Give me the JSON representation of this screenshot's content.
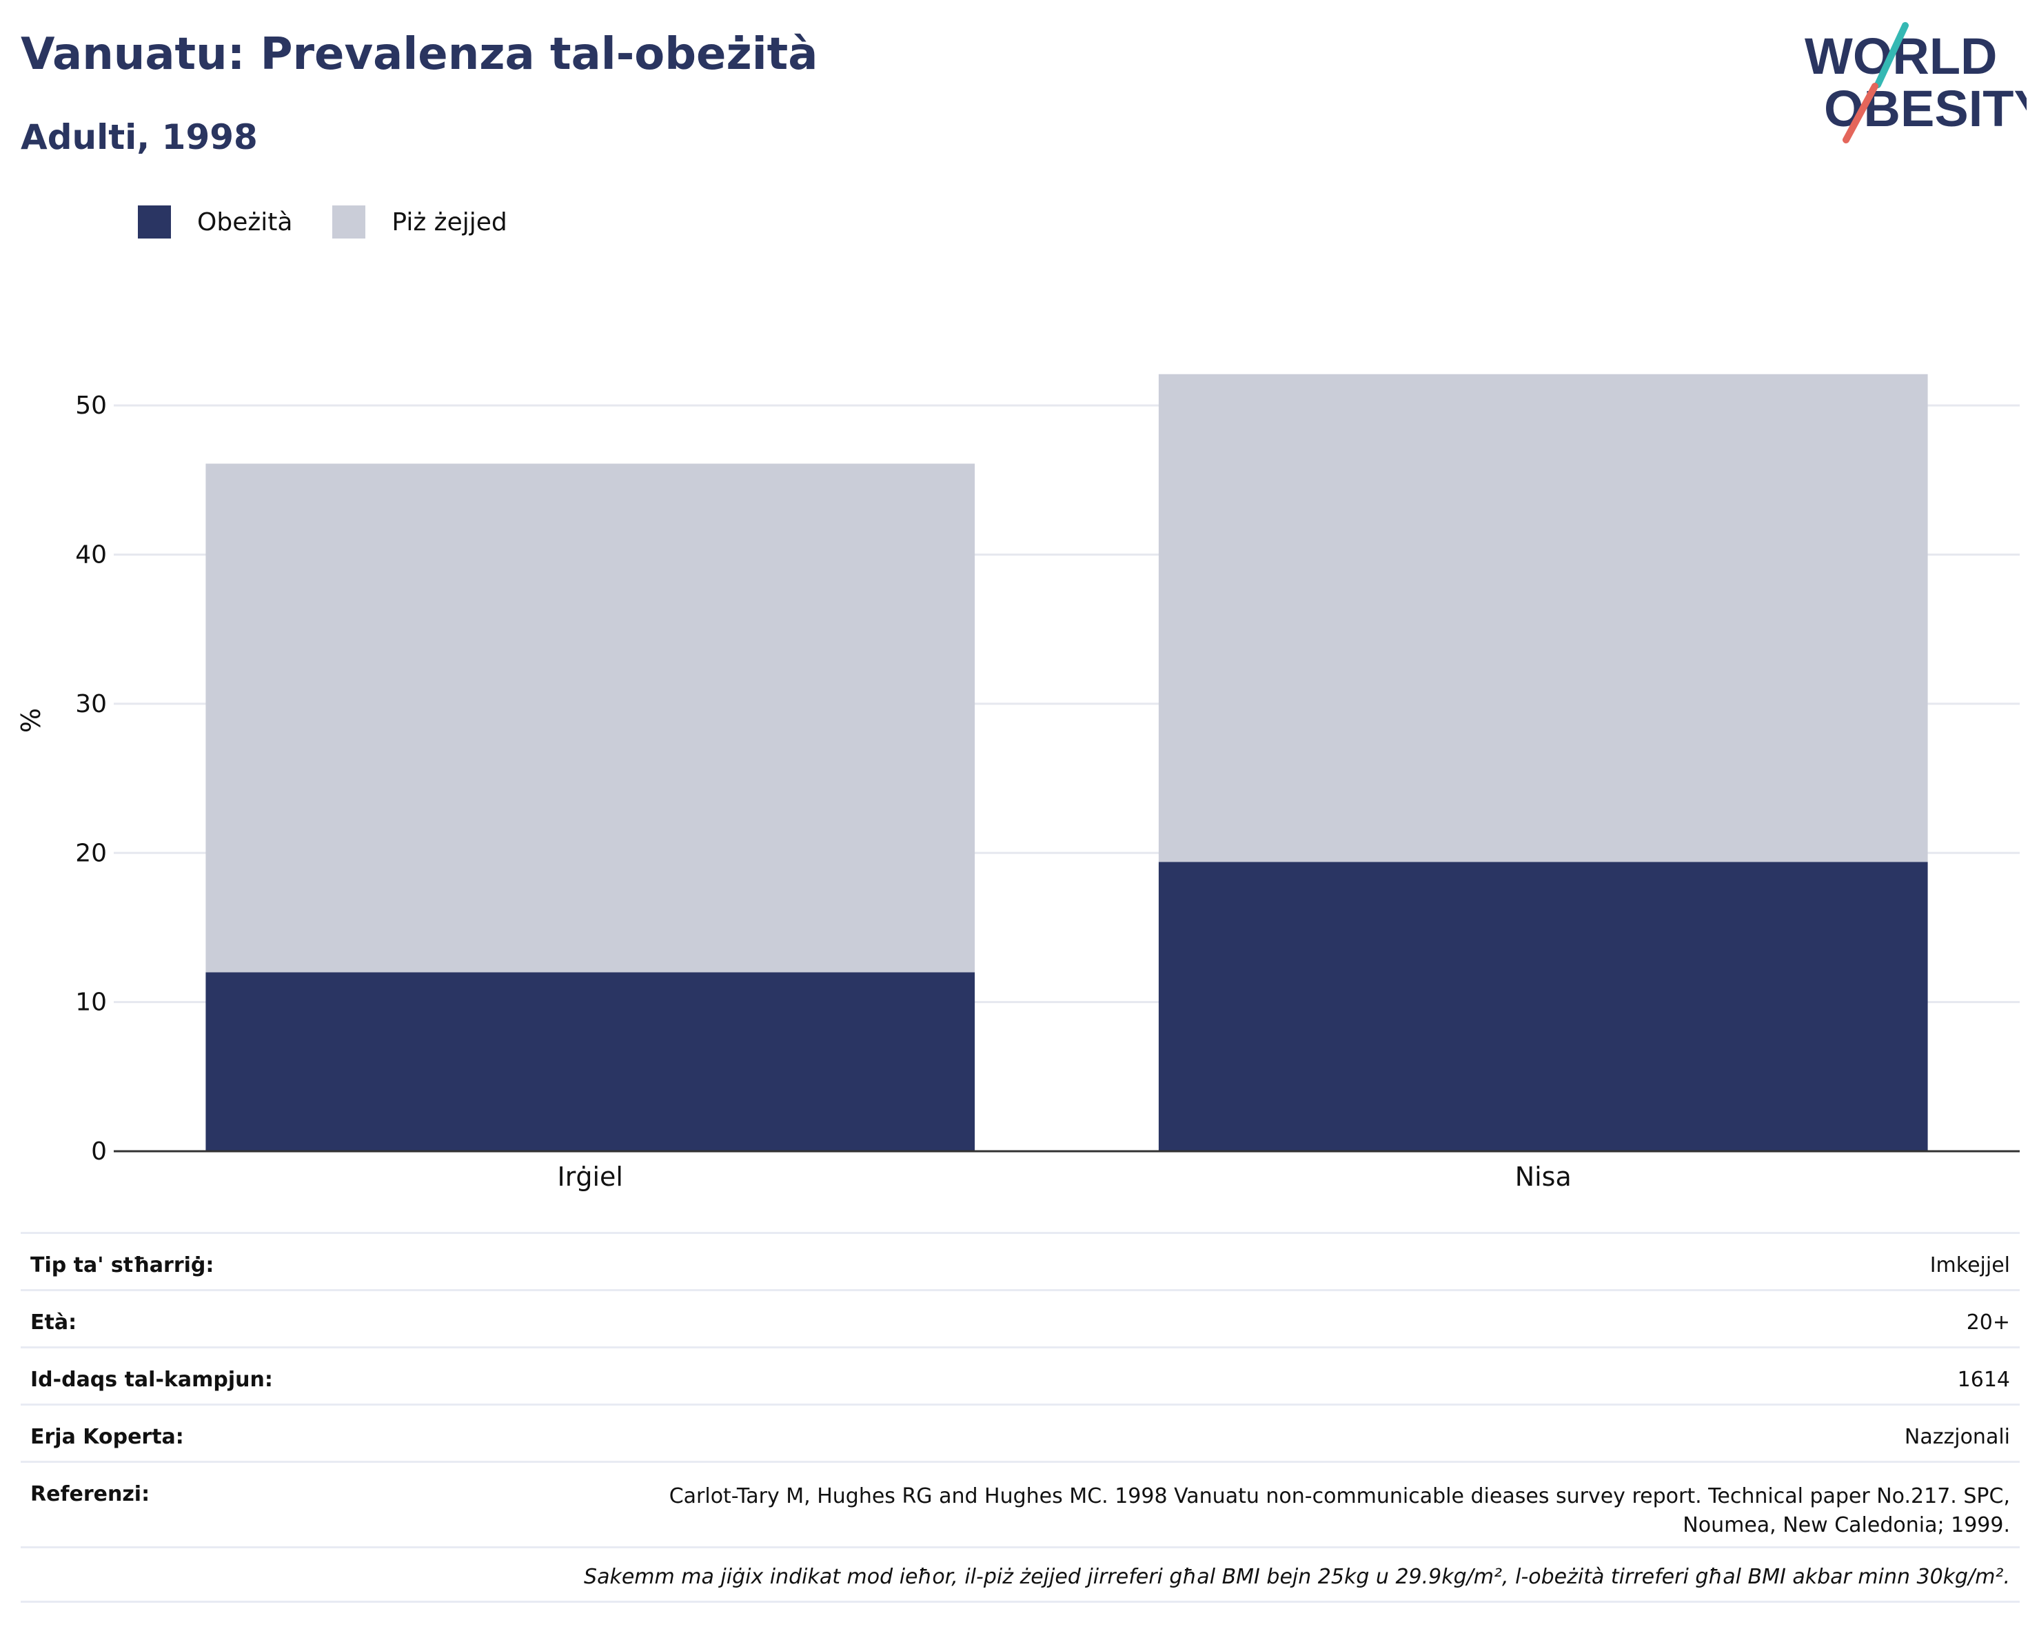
{
  "header": {
    "title": "Vanuatu: Prevalenza tal-obeżità",
    "subtitle": "Adulti, 1998"
  },
  "logo": {
    "line1": "WORLD",
    "line2": "OBESITY"
  },
  "legend": {
    "items": [
      {
        "label": "Obeżità",
        "color": "#2a3563"
      },
      {
        "label": "Piż żejjed",
        "color": "#cacdd8"
      }
    ]
  },
  "chart_data": {
    "type": "bar",
    "stacked": true,
    "categories": [
      "Irġiel",
      "Nisa"
    ],
    "series": [
      {
        "name": "Obeżità",
        "color": "#2a3563",
        "values": [
          12.0,
          19.4
        ]
      },
      {
        "name": "Piż żejjed",
        "color": "#cacdd8",
        "values": [
          34.1,
          32.7
        ]
      }
    ],
    "ylabel": "%",
    "xlabel": "",
    "ylim": [
      0,
      55
    ],
    "yticks": [
      0,
      10,
      20,
      30,
      40,
      50
    ],
    "grid": true,
    "legend_position": "top-left"
  },
  "info": {
    "rows": [
      {
        "label": "Tip ta' stħarriġ:",
        "value": "Imkejjel"
      },
      {
        "label": "Età:",
        "value": "20+"
      },
      {
        "label": "Id-daqs tal-kampjun:",
        "value": "1614"
      },
      {
        "label": "Erja Koperta:",
        "value": "Nazzjonali"
      },
      {
        "label": "Referenzi:",
        "value_line1": "Carlot-Tary M, Hughes RG and Hughes MC. 1998 Vanuatu non-communicable dieases survey report. Technical paper No.217. SPC,",
        "value_line2": "Noumea, New Caledonia; 1999."
      }
    ],
    "note": "Sakemm ma jiġix indikat mod ieħor, il-piż żejjed jirreferi għal BMI bejn 25kg u 29.9kg/m², l-obeżità tirreferi għal BMI akbar minn 30kg/m²."
  }
}
